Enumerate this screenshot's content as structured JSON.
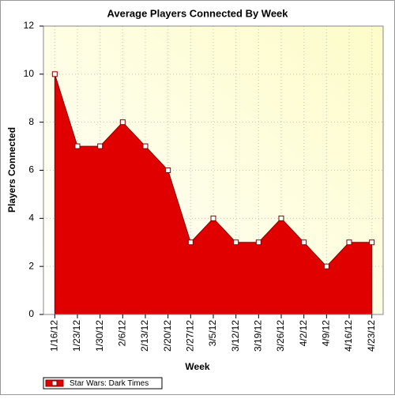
{
  "chart_data": {
    "type": "area",
    "title": "Average Players Connected By Week",
    "x_label": "Week",
    "y_label": "Players Connected",
    "categories": [
      "1/16/12",
      "1/23/12",
      "1/30/12",
      "2/6/12",
      "2/13/12",
      "2/20/12",
      "2/27/12",
      "3/5/12",
      "3/12/12",
      "3/19/12",
      "3/26/12",
      "4/2/12",
      "4/9/12",
      "4/16/12",
      "4/23/12"
    ],
    "series": [
      {
        "name": "Star Wars: Dark Times",
        "color": "#e00000",
        "values": [
          10,
          7,
          7,
          8,
          7,
          6,
          3,
          4,
          3,
          3,
          4,
          3,
          2,
          3,
          3
        ]
      }
    ],
    "ylim": [
      0,
      12
    ],
    "yticks": [
      0,
      2,
      4,
      6,
      8,
      10,
      12
    ],
    "grid": true,
    "legend": "bottom-left"
  }
}
